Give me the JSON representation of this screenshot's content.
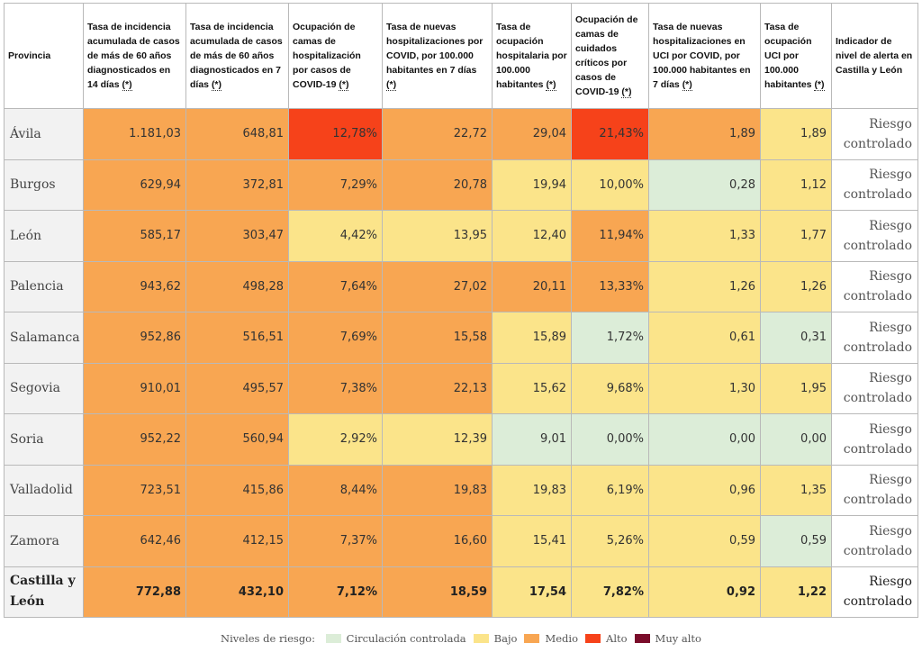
{
  "colors": {
    "controlada": "#dcedd8",
    "bajo": "#fbe48a",
    "medio": "#f8a652",
    "alto": "#f6421a",
    "muy_alto": "#7a0c2a"
  },
  "headers": [
    {
      "text": "Provincia",
      "ast": ""
    },
    {
      "text": "Tasa de incidencia acumulada de casos de más de 60 años diagnosticados en 14 días ",
      "ast": "(*)"
    },
    {
      "text": "Tasa de incidencia acumulada de casos de más de 60 años diagnosticados en 7 días ",
      "ast": "(*)"
    },
    {
      "text": "Ocupación de camas de hospitalización por casos de COVID-19 ",
      "ast": "(*)"
    },
    {
      "text": "Tasa de nuevas hospitalizaciones por COVID, por 100.000 habitantes en 7 días ",
      "ast": "(*)"
    },
    {
      "text": "Tasa de ocupación hospitalaria por 100.000 habitantes ",
      "ast": "(*)"
    },
    {
      "text": "Ocupación de camas de cuidados críticos por casos de COVID-19 ",
      "ast": "(*)"
    },
    {
      "text": "Tasa de nuevas hospitalizaciones en UCI por COVID, por 100.000 habitantes en 7 días ",
      "ast": "(*)"
    },
    {
      "text": "Tasa de ocupación UCI por 100.000 habitantes ",
      "ast": "(*)"
    },
    {
      "text": "Indicador de nivel de alerta en Castilla y León",
      "ast": ""
    }
  ],
  "rows": [
    {
      "provincia": "Ávila",
      "total": false,
      "alerta": "Riesgo controlado",
      "cells": [
        {
          "v": "1.181,03",
          "l": "medio"
        },
        {
          "v": "648,81",
          "l": "medio"
        },
        {
          "v": "12,78%",
          "l": "alto"
        },
        {
          "v": "22,72",
          "l": "medio"
        },
        {
          "v": "29,04",
          "l": "medio"
        },
        {
          "v": "21,43%",
          "l": "alto"
        },
        {
          "v": "1,89",
          "l": "medio"
        },
        {
          "v": "1,89",
          "l": "bajo"
        }
      ]
    },
    {
      "provincia": "Burgos",
      "total": false,
      "alerta": "Riesgo controlado",
      "cells": [
        {
          "v": "629,94",
          "l": "medio"
        },
        {
          "v": "372,81",
          "l": "medio"
        },
        {
          "v": "7,29%",
          "l": "medio"
        },
        {
          "v": "20,78",
          "l": "medio"
        },
        {
          "v": "19,94",
          "l": "bajo"
        },
        {
          "v": "10,00%",
          "l": "bajo"
        },
        {
          "v": "0,28",
          "l": "controlada"
        },
        {
          "v": "1,12",
          "l": "bajo"
        }
      ]
    },
    {
      "provincia": "León",
      "total": false,
      "alerta": "Riesgo controlado",
      "cells": [
        {
          "v": "585,17",
          "l": "medio"
        },
        {
          "v": "303,47",
          "l": "medio"
        },
        {
          "v": "4,42%",
          "l": "bajo"
        },
        {
          "v": "13,95",
          "l": "bajo"
        },
        {
          "v": "12,40",
          "l": "bajo"
        },
        {
          "v": "11,94%",
          "l": "medio"
        },
        {
          "v": "1,33",
          "l": "bajo"
        },
        {
          "v": "1,77",
          "l": "bajo"
        }
      ]
    },
    {
      "provincia": "Palencia",
      "total": false,
      "alerta": "Riesgo controlado",
      "cells": [
        {
          "v": "943,62",
          "l": "medio"
        },
        {
          "v": "498,28",
          "l": "medio"
        },
        {
          "v": "7,64%",
          "l": "medio"
        },
        {
          "v": "27,02",
          "l": "medio"
        },
        {
          "v": "20,11",
          "l": "medio"
        },
        {
          "v": "13,33%",
          "l": "medio"
        },
        {
          "v": "1,26",
          "l": "bajo"
        },
        {
          "v": "1,26",
          "l": "bajo"
        }
      ]
    },
    {
      "provincia": "Salamanca",
      "total": false,
      "alerta": "Riesgo controlado",
      "cells": [
        {
          "v": "952,86",
          "l": "medio"
        },
        {
          "v": "516,51",
          "l": "medio"
        },
        {
          "v": "7,69%",
          "l": "medio"
        },
        {
          "v": "15,58",
          "l": "medio"
        },
        {
          "v": "15,89",
          "l": "bajo"
        },
        {
          "v": "1,72%",
          "l": "controlada"
        },
        {
          "v": "0,61",
          "l": "bajo"
        },
        {
          "v": "0,31",
          "l": "controlada"
        }
      ]
    },
    {
      "provincia": "Segovia",
      "total": false,
      "alerta": "Riesgo controlado",
      "cells": [
        {
          "v": "910,01",
          "l": "medio"
        },
        {
          "v": "495,57",
          "l": "medio"
        },
        {
          "v": "7,38%",
          "l": "medio"
        },
        {
          "v": "22,13",
          "l": "medio"
        },
        {
          "v": "15,62",
          "l": "bajo"
        },
        {
          "v": "9,68%",
          "l": "bajo"
        },
        {
          "v": "1,30",
          "l": "bajo"
        },
        {
          "v": "1,95",
          "l": "bajo"
        }
      ]
    },
    {
      "provincia": "Soria",
      "total": false,
      "alerta": "Riesgo controlado",
      "cells": [
        {
          "v": "952,22",
          "l": "medio"
        },
        {
          "v": "560,94",
          "l": "medio"
        },
        {
          "v": "2,92%",
          "l": "bajo"
        },
        {
          "v": "12,39",
          "l": "bajo"
        },
        {
          "v": "9,01",
          "l": "controlada"
        },
        {
          "v": "0,00%",
          "l": "controlada"
        },
        {
          "v": "0,00",
          "l": "controlada"
        },
        {
          "v": "0,00",
          "l": "controlada"
        }
      ]
    },
    {
      "provincia": "Valladolid",
      "total": false,
      "alerta": "Riesgo controlado",
      "cells": [
        {
          "v": "723,51",
          "l": "medio"
        },
        {
          "v": "415,86",
          "l": "medio"
        },
        {
          "v": "8,44%",
          "l": "medio"
        },
        {
          "v": "19,83",
          "l": "medio"
        },
        {
          "v": "19,83",
          "l": "bajo"
        },
        {
          "v": "6,19%",
          "l": "bajo"
        },
        {
          "v": "0,96",
          "l": "bajo"
        },
        {
          "v": "1,35",
          "l": "bajo"
        }
      ]
    },
    {
      "provincia": "Zamora",
      "total": false,
      "alerta": "Riesgo controlado",
      "cells": [
        {
          "v": "642,46",
          "l": "medio"
        },
        {
          "v": "412,15",
          "l": "medio"
        },
        {
          "v": "7,37%",
          "l": "medio"
        },
        {
          "v": "16,60",
          "l": "medio"
        },
        {
          "v": "15,41",
          "l": "bajo"
        },
        {
          "v": "5,26%",
          "l": "bajo"
        },
        {
          "v": "0,59",
          "l": "bajo"
        },
        {
          "v": "0,59",
          "l": "controlada"
        }
      ]
    },
    {
      "provincia": "Castilla y León",
      "total": true,
      "alerta": "Riesgo controlado",
      "cells": [
        {
          "v": "772,88",
          "l": "medio"
        },
        {
          "v": "432,10",
          "l": "medio"
        },
        {
          "v": "7,12%",
          "l": "medio"
        },
        {
          "v": "18,59",
          "l": "medio"
        },
        {
          "v": "17,54",
          "l": "bajo"
        },
        {
          "v": "7,82%",
          "l": "bajo"
        },
        {
          "v": "0,92",
          "l": "bajo"
        },
        {
          "v": "1,22",
          "l": "bajo"
        }
      ]
    }
  ],
  "legend": {
    "title": "Niveles de riesgo:",
    "items": [
      {
        "label": "Circulación controlada",
        "key": "controlada"
      },
      {
        "label": "Bajo",
        "key": "bajo"
      },
      {
        "label": "Medio",
        "key": "medio"
      },
      {
        "label": "Alto",
        "key": "alto"
      },
      {
        "label": "Muy alto",
        "key": "muy_alto"
      }
    ]
  }
}
